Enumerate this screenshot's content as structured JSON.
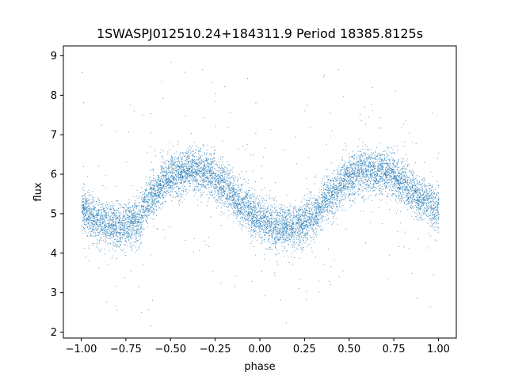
{
  "chart_data": {
    "type": "scatter",
    "title": "1SWASPJ012510.24+184311.9 Period 18385.8125s",
    "xlabel": "phase",
    "ylabel": "flux",
    "xlim": [
      -1.1,
      1.1
    ],
    "ylim": [
      1.85,
      9.25
    ],
    "xticks": [
      -1.0,
      -0.75,
      -0.5,
      -0.25,
      0.0,
      0.25,
      0.5,
      0.75,
      1.0
    ],
    "xtick_labels": [
      "−1.00",
      "−0.75",
      "−0.50",
      "−0.25",
      "0.00",
      "0.25",
      "0.50",
      "0.75",
      "1.00"
    ],
    "yticks": [
      2,
      3,
      4,
      5,
      6,
      7,
      8,
      9
    ],
    "ytick_labels": [
      "2",
      "3",
      "4",
      "5",
      "6",
      "7",
      "8",
      "9"
    ],
    "grid": false,
    "legend": "none",
    "marker_color": "#1f77b4",
    "model_curve": {
      "x": [
        -1.0,
        -0.9,
        -0.8,
        -0.7,
        -0.6,
        -0.5,
        -0.4,
        -0.3,
        -0.2,
        -0.1,
        0.0,
        0.1,
        0.2,
        0.3,
        0.4,
        0.5,
        0.6,
        0.7,
        0.8,
        0.9,
        1.0
      ],
      "y": [
        5.1,
        4.8,
        4.7,
        4.8,
        5.5,
        5.95,
        6.1,
        6.05,
        5.7,
        5.2,
        4.85,
        4.65,
        4.7,
        4.95,
        5.5,
        5.95,
        6.1,
        6.1,
        5.8,
        5.4,
        5.1
      ]
    },
    "scatter_width": 0.55
  }
}
